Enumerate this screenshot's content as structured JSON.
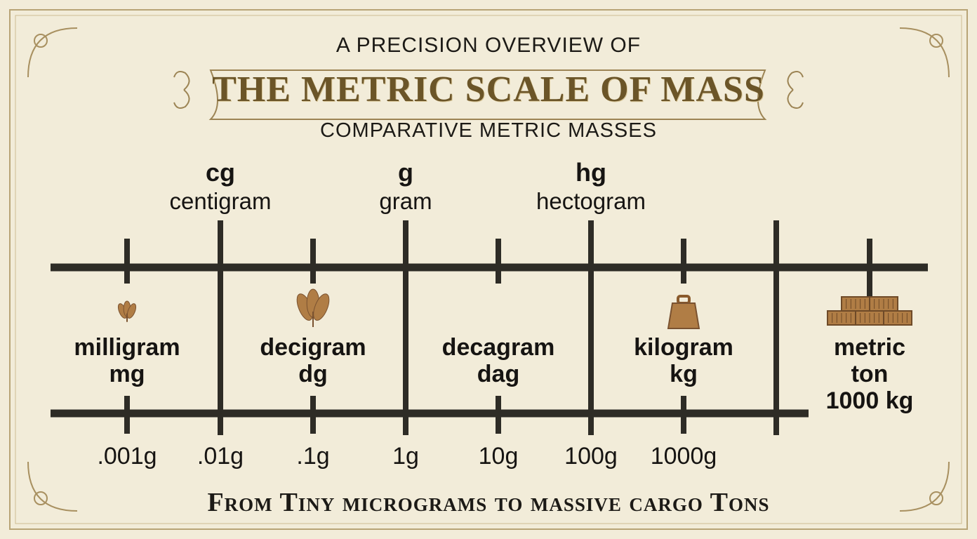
{
  "header": {
    "overline": "A PRECISION OVERVIEW OF",
    "title": "THE METRIC SCALE OF MASS",
    "subtitle": "COMPARATIVE METRIC MASSES"
  },
  "footer": {
    "tagline": "From Tiny micrograms to massive cargo Tons"
  },
  "colors": {
    "background": "#f2ecd9",
    "line": "#2e2c26",
    "accent": "#b07d45",
    "title": "#6b5528"
  },
  "top_units": [
    {
      "abbr": "cg",
      "name": "centigram"
    },
    {
      "abbr": "g",
      "name": "gram"
    },
    {
      "abbr": "hg",
      "name": "hectogram"
    }
  ],
  "middle_units": [
    {
      "lines": [
        "milligram",
        "mg"
      ],
      "icon": "grain-icon"
    },
    {
      "lines": [
        "decigram",
        "dg"
      ],
      "icon": "wheat-icon"
    },
    {
      "lines": [
        "decagram",
        "dag"
      ],
      "icon": ""
    },
    {
      "lines": [
        "kilogram",
        "kg"
      ],
      "icon": "weight-icon"
    },
    {
      "lines": [
        "metric",
        "ton",
        "1000 kg"
      ],
      "icon": "cargo-boxes-icon"
    }
  ],
  "tick_values": [
    ".001g",
    ".01g",
    ".1g",
    "1g",
    "10g",
    "100g",
    "1000g"
  ]
}
